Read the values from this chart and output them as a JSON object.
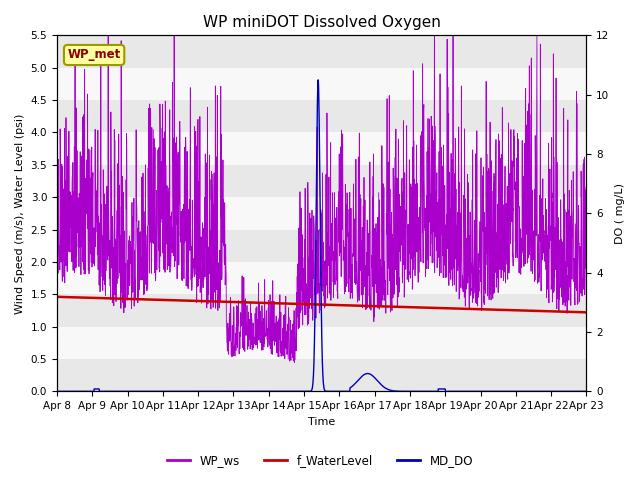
{
  "title": "WP miniDOT Dissolved Oxygen",
  "xlabel": "Time",
  "ylabel_left": "Wind Speed (m/s), Water Level (psi)",
  "ylabel_right": "DO ( mg/L)",
  "annotation_text": "WP_met",
  "annotation_facecolor": "#FFFFA0",
  "annotation_edgecolor": "#999900",
  "annotation_textcolor": "#8B0000",
  "bg_color": "#FFFFFF",
  "plot_bg_color": "#FFFFFF",
  "band_color1": "#E8E8E8",
  "band_color2": "#F8F8F8",
  "left_ylim": [
    0.0,
    5.5
  ],
  "right_ylim": [
    0,
    12
  ],
  "wp_ws_color": "#AA00CC",
  "f_waterlevel_color": "#CC0000",
  "md_do_color": "#0000BB",
  "legend_labels": [
    "WP_ws",
    "f_WaterLevel",
    "MD_DO"
  ],
  "tick_dates": [
    "Apr 8",
    "Apr 9",
    "Apr 10",
    "Apr 11",
    "Apr 12",
    "Apr 13",
    "Apr 14",
    "Apr 15",
    "Apr 16",
    "Apr 17",
    "Apr 18",
    "Apr 19",
    "Apr 20",
    "Apr 21",
    "Apr 22",
    "Apr 23"
  ],
  "left_yticks": [
    0.0,
    0.5,
    1.0,
    1.5,
    2.0,
    2.5,
    3.0,
    3.5,
    4.0,
    4.5,
    5.0,
    5.5
  ],
  "right_yticks": [
    0,
    2,
    4,
    6,
    8,
    10,
    12
  ],
  "title_fontsize": 11,
  "axis_label_fontsize": 8,
  "tick_fontsize": 7.5,
  "legend_fontsize": 8.5
}
